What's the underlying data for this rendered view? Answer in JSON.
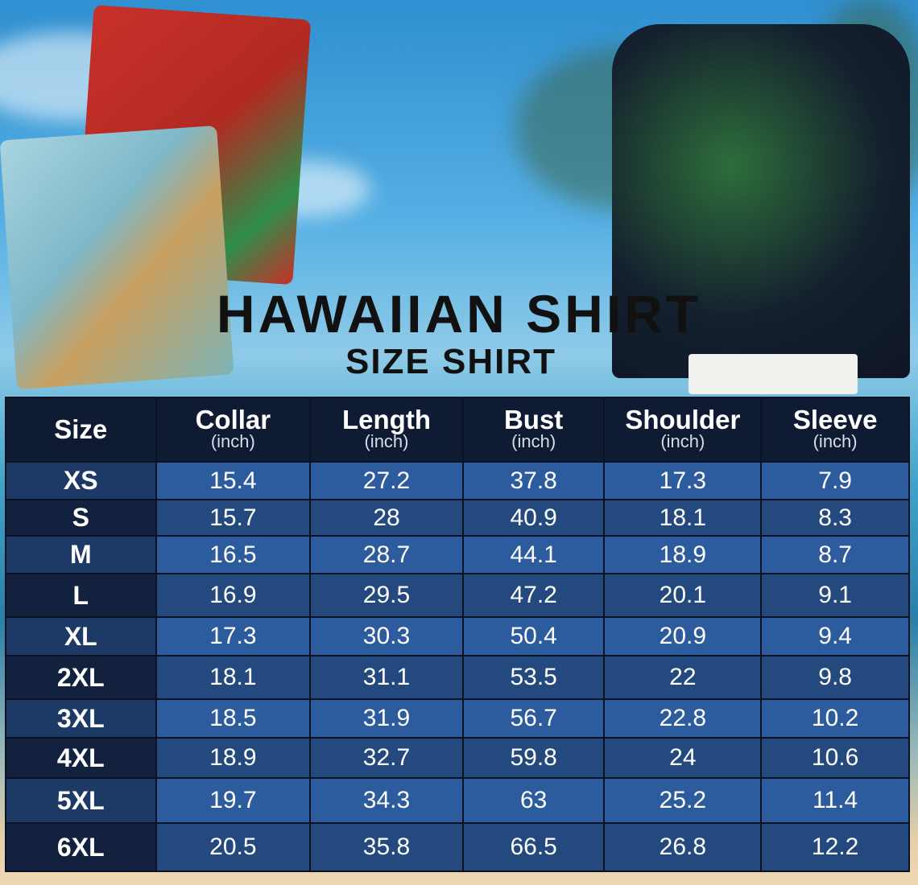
{
  "title": "HAWAIIAN SHIRT",
  "subtitle": "SIZE SHIRT",
  "colors": {
    "header": "#0f1b33",
    "row_light": "#2c5b9e",
    "row_dark": "#24497f",
    "size_col_light": "#1d3a66",
    "size_col_dark": "#12213d"
  },
  "table": {
    "headers": [
      {
        "label": "Size",
        "unit": ""
      },
      {
        "label": "Collar",
        "unit": "(inch)"
      },
      {
        "label": "Length",
        "unit": "(inch)"
      },
      {
        "label": "Bust",
        "unit": "(inch)"
      },
      {
        "label": "Shoulder",
        "unit": "(inch)"
      },
      {
        "label": "Sleeve",
        "unit": "(inch)"
      }
    ],
    "rows": [
      [
        "XS",
        "15.4",
        "27.2",
        "37.8",
        "17.3",
        "7.9"
      ],
      [
        "S",
        "15.7",
        "28",
        "40.9",
        "18.1",
        "8.3"
      ],
      [
        "M",
        "16.5",
        "28.7",
        "44.1",
        "18.9",
        "8.7"
      ],
      [
        "L",
        "16.9",
        "29.5",
        "47.2",
        "20.1",
        "9.1"
      ],
      [
        "XL",
        "17.3",
        "30.3",
        "50.4",
        "20.9",
        "9.4"
      ],
      [
        "2XL",
        "18.1",
        "31.1",
        "53.5",
        "22",
        "9.8"
      ],
      [
        "3XL",
        "18.5",
        "31.9",
        "56.7",
        "22.8",
        "10.2"
      ],
      [
        "4XL",
        "18.9",
        "32.7",
        "59.8",
        "24",
        "10.6"
      ],
      [
        "5XL",
        "19.7",
        "34.3",
        "63",
        "25.2",
        "11.4"
      ],
      [
        "6XL",
        "20.5",
        "35.8",
        "66.5",
        "26.8",
        "12.2"
      ]
    ]
  }
}
